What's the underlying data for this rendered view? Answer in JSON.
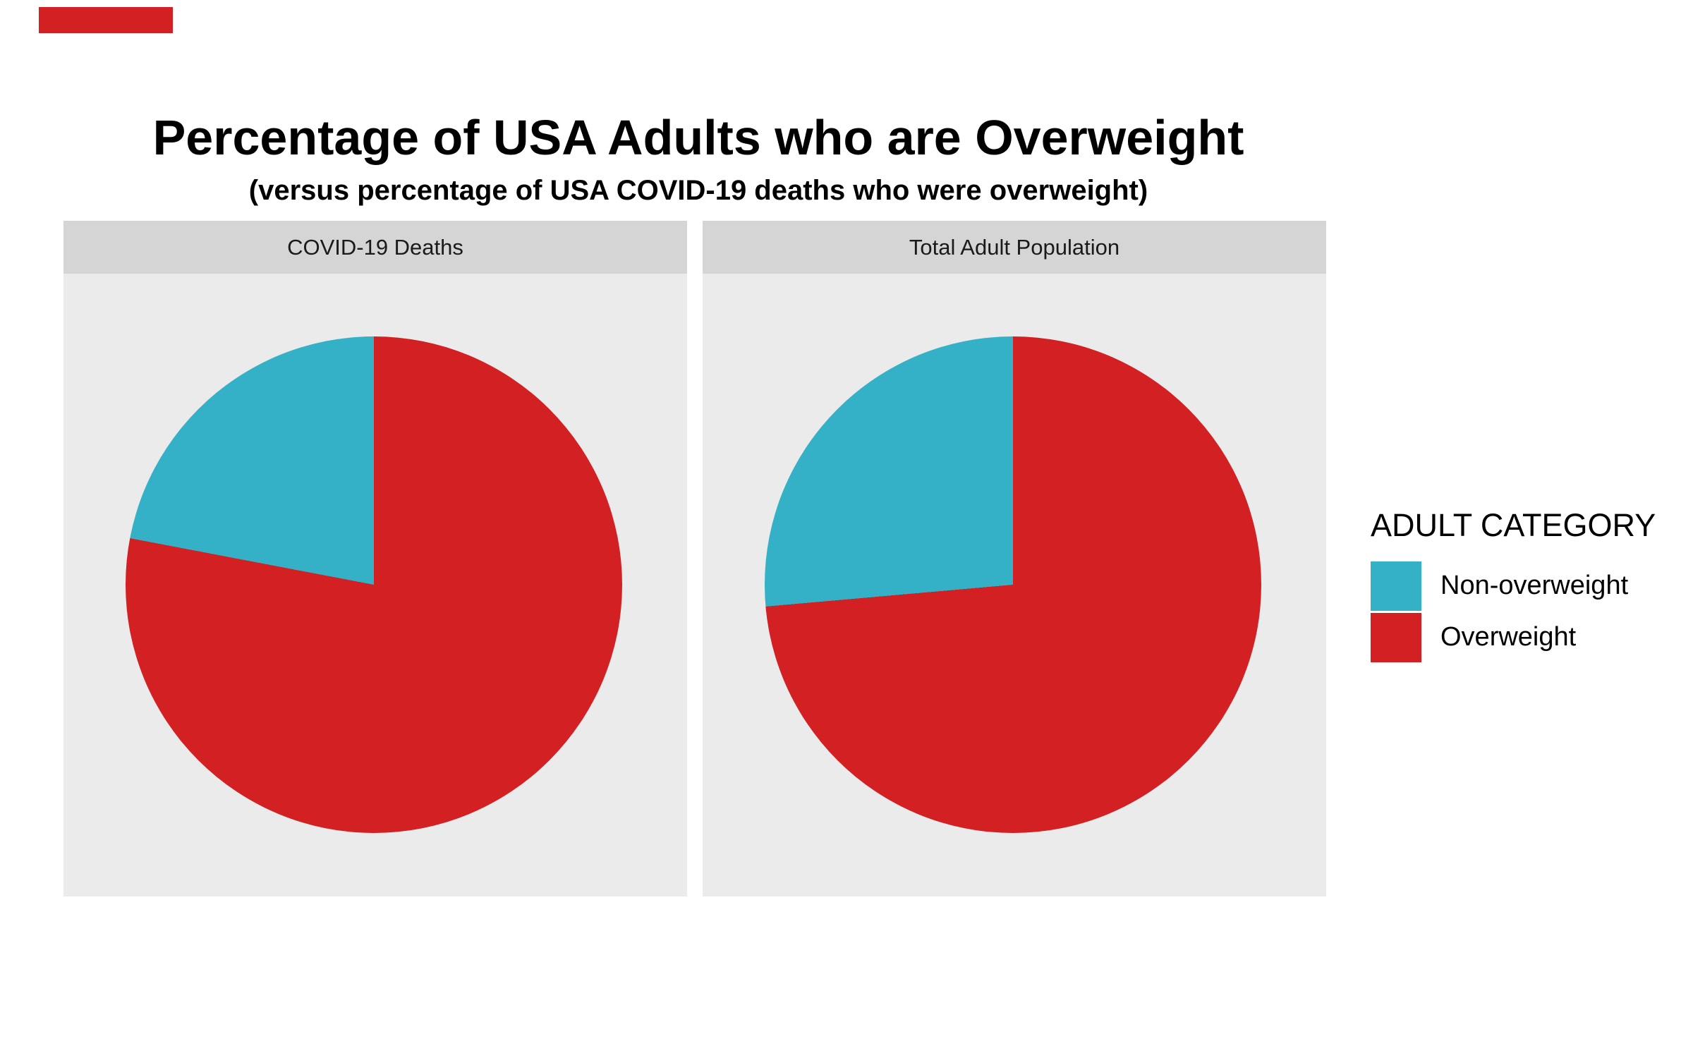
{
  "title": "Percentage of USA Adults who are Overweight",
  "subtitle": "(versus percentage of USA COVID-19 deaths who were overweight)",
  "facets": [
    {
      "label": "COVID-19 Deaths"
    },
    {
      "label": "Total Adult Population"
    }
  ],
  "legend": {
    "title": "ADULT CATEGORY",
    "position": "right",
    "items": [
      {
        "label": "Non-overweight",
        "color": "#34B1C7"
      },
      {
        "label": "Overweight",
        "color": "#D22023"
      }
    ]
  },
  "colors": {
    "non_overweight": "#34B1C7",
    "overweight": "#D22023",
    "panel_background": "#EBEBEB",
    "strip_background": "#D5D5D5",
    "strip_text": "#1A1A1A",
    "title_text": "#000000",
    "page_background": "#FFFFFF",
    "corner_marker": "#D22023"
  },
  "chart_data": [
    {
      "type": "pie",
      "facet": "COVID-19 Deaths",
      "labels": [
        "Non-overweight",
        "Overweight"
      ],
      "values": [
        22,
        78
      ],
      "unit": "percent",
      "colors": [
        "#34B1C7",
        "#D22023"
      ],
      "start_angle": "12 o'clock",
      "non_overweight_sweep": "counter-clockwise from top",
      "legend_position": "right"
    },
    {
      "type": "pie",
      "facet": "Total Adult Population",
      "labels": [
        "Non-overweight",
        "Overweight"
      ],
      "values": [
        26.4,
        73.6
      ],
      "unit": "percent",
      "colors": [
        "#34B1C7",
        "#D22023"
      ],
      "start_angle": "12 o'clock",
      "non_overweight_sweep": "counter-clockwise from top",
      "legend_position": "right"
    }
  ]
}
